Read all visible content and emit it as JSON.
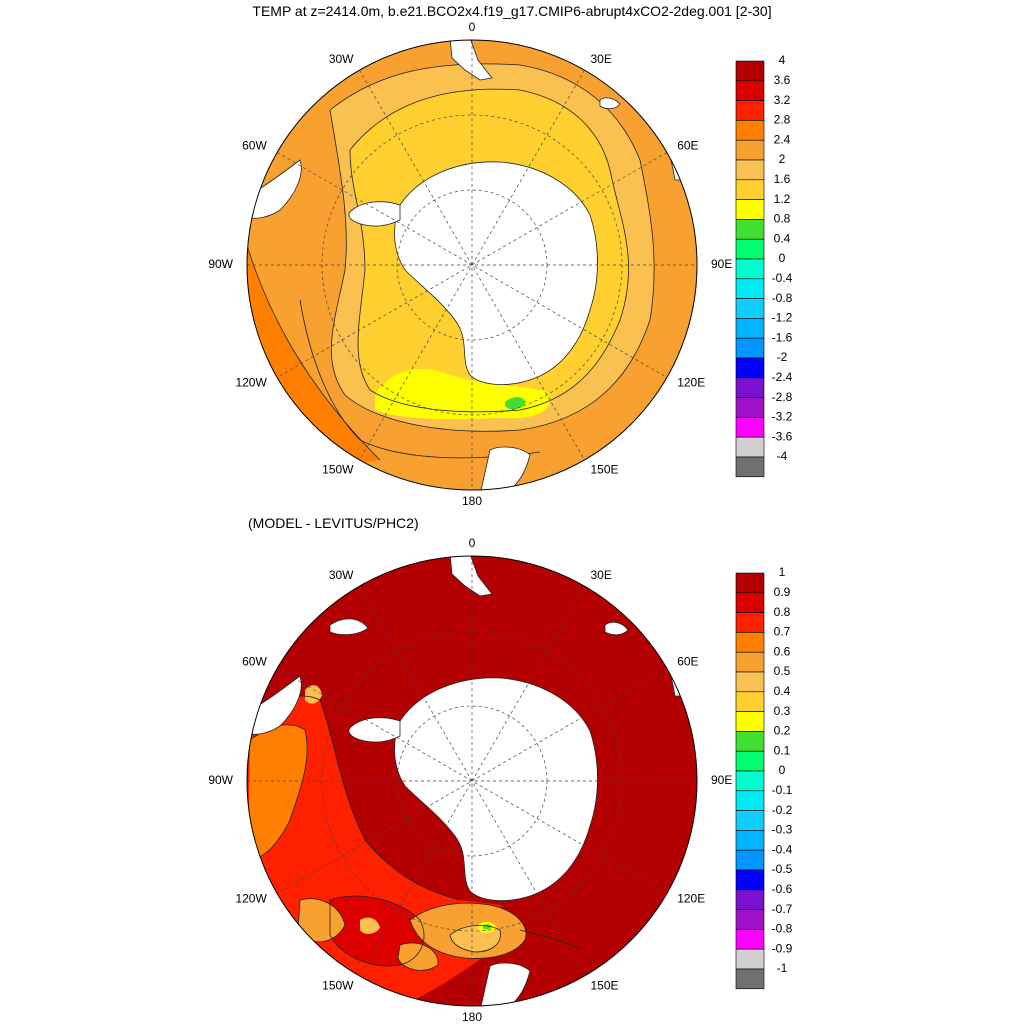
{
  "title": "TEMP at z=2414.0m, b.e21.BCO2x4.f19_g17.CMIP6-abrupt4xCO2-2deg.001 [2-30]",
  "subtitle": "(MODEL - LEVITUS/PHC2)",
  "longitude_labels": [
    "0",
    "30E",
    "60E",
    "90E",
    "120E",
    "150E",
    "180",
    "150W",
    "120W",
    "90W",
    "60W",
    "30W"
  ],
  "colors": {
    "land": "#ffffff",
    "contour": "#222222",
    "frame": "#000000",
    "grid": "#444444"
  },
  "panels": [
    {
      "id": "temp",
      "colorbar": {
        "labels": [
          "4",
          "3.6",
          "3.2",
          "2.8",
          "2.4",
          "2",
          "1.6",
          "1.2",
          "0.8",
          "0.4",
          "0",
          "-0.4",
          "-0.8",
          "-1.2",
          "-1.6",
          "-2",
          "-2.4",
          "-2.8",
          "-3.2",
          "-3.6",
          "-4"
        ],
        "colors": [
          "#b40000",
          "#dc0000",
          "#ff2000",
          "#ff8000",
          "#f8a030",
          "#fac050",
          "#ffd030",
          "#ffff00",
          "#40e030",
          "#00ff70",
          "#00ffd0",
          "#00eaf6",
          "#10cef8",
          "#00b4ff",
          "#0096ff",
          "#0000ff",
          "#7a10d0",
          "#a010c8",
          "#ff00ff",
          "#d0d0d0",
          "#707070"
        ]
      }
    },
    {
      "id": "diff",
      "colorbar": {
        "labels": [
          "1",
          "0.9",
          "0.8",
          "0.7",
          "0.6",
          "0.5",
          "0.4",
          "0.3",
          "0.2",
          "0.1",
          "0",
          "-0.1",
          "-0.2",
          "-0.3",
          "-0.4",
          "-0.5",
          "-0.6",
          "-0.7",
          "-0.8",
          "-0.9",
          "-1"
        ],
        "colors": [
          "#b40000",
          "#dc0000",
          "#ff2000",
          "#ff8000",
          "#f8a030",
          "#fac050",
          "#ffd030",
          "#ffff00",
          "#40e030",
          "#00ff70",
          "#00ffd0",
          "#00eaf6",
          "#10cef8",
          "#00b4ff",
          "#0096ff",
          "#0000ff",
          "#7a10d0",
          "#a010c8",
          "#ff00ff",
          "#d0d0d0",
          "#707070"
        ]
      }
    }
  ]
}
